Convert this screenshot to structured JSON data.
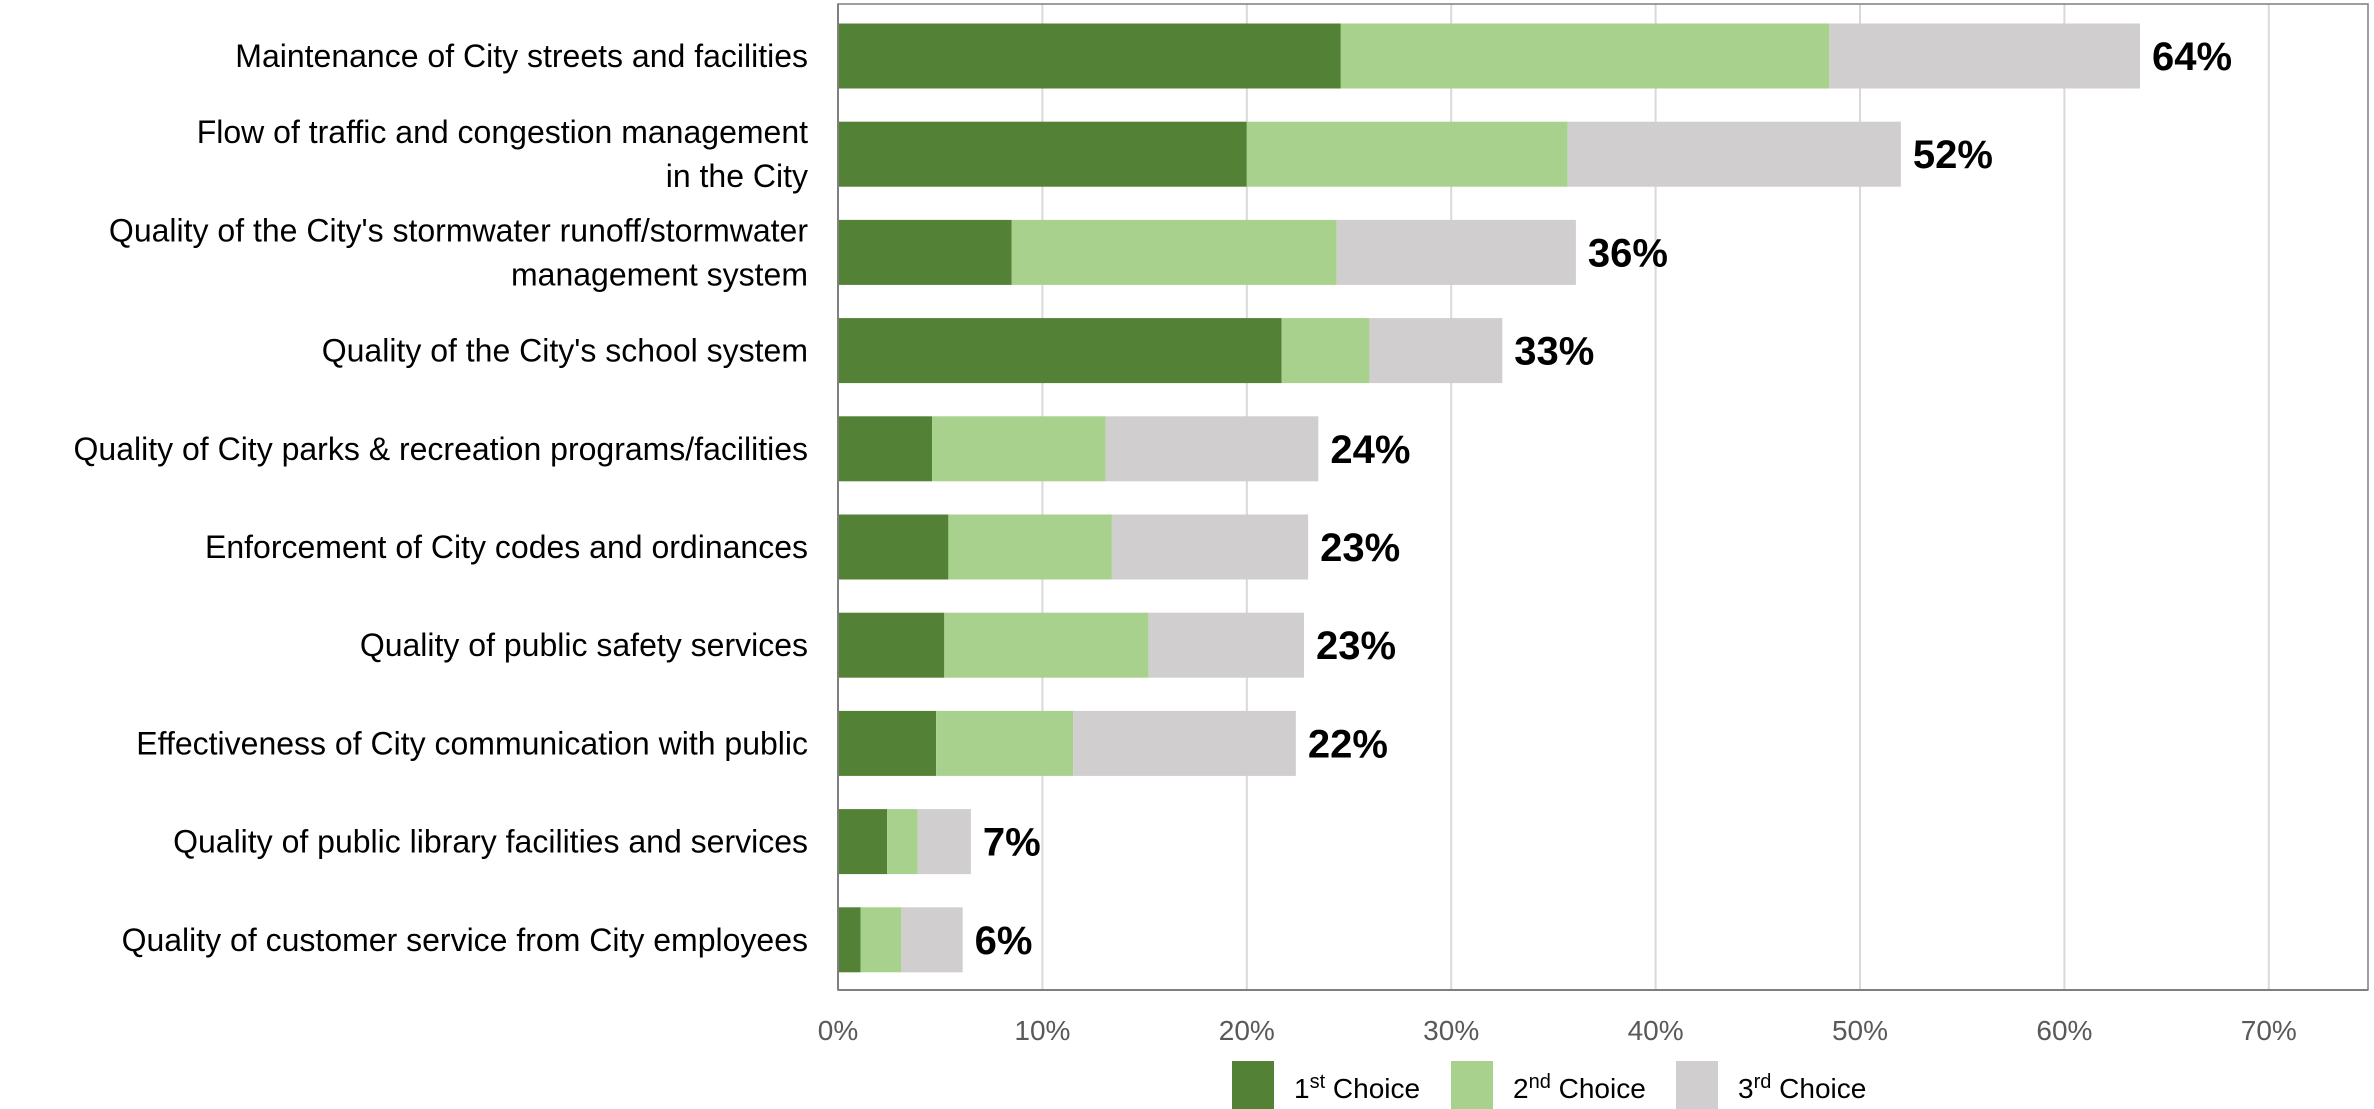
{
  "chart_data": {
    "type": "bar",
    "orientation": "horizontal",
    "stacked": true,
    "categories": [
      [
        "Maintenance of City streets and facilities"
      ],
      [
        "Flow of traffic and congestion management",
        "in the City"
      ],
      [
        "Quality of the City's stormwater runoff/stormwater",
        "management system"
      ],
      [
        "Quality of the City's school system"
      ],
      [
        "Quality of City parks & recreation programs/facilities"
      ],
      [
        "Enforcement of City codes and ordinances"
      ],
      [
        "Quality of public safety services"
      ],
      [
        "Effectiveness of City communication with public"
      ],
      [
        "Quality of public library facilities and services"
      ],
      [
        "Quality of customer service from City employees"
      ]
    ],
    "series": [
      {
        "name": "1st Choice",
        "color": "#538135",
        "values": [
          24.6,
          20.0,
          8.5,
          21.7,
          4.6,
          5.4,
          5.2,
          4.8,
          2.4,
          1.1
        ]
      },
      {
        "name": "2nd Choice",
        "color": "#A9D18E",
        "values": [
          23.9,
          15.7,
          15.9,
          4.3,
          8.5,
          8.0,
          10.0,
          6.7,
          1.5,
          2.0
        ]
      },
      {
        "name": "3rd Choice",
        "color": "#D0CECE",
        "values": [
          15.2,
          16.3,
          11.7,
          6.5,
          10.4,
          9.6,
          7.6,
          10.9,
          2.6,
          3.0
        ]
      }
    ],
    "totals": [
      "64%",
      "52%",
      "36%",
      "33%",
      "24%",
      "23%",
      "23%",
      "22%",
      "7%",
      "6%"
    ],
    "xlim": [
      0,
      75
    ],
    "xticks": [
      "0%",
      "10%",
      "20%",
      "30%",
      "40%",
      "50%",
      "60%",
      "70%"
    ],
    "grid": true,
    "legend_position": "bottom",
    "legend": [
      {
        "base": "1",
        "sup": "st",
        "rest": " Choice"
      },
      {
        "base": "2",
        "sup": "nd",
        "rest": " Choice"
      },
      {
        "base": "3",
        "sup": "rd",
        "rest": " Choice"
      }
    ]
  }
}
